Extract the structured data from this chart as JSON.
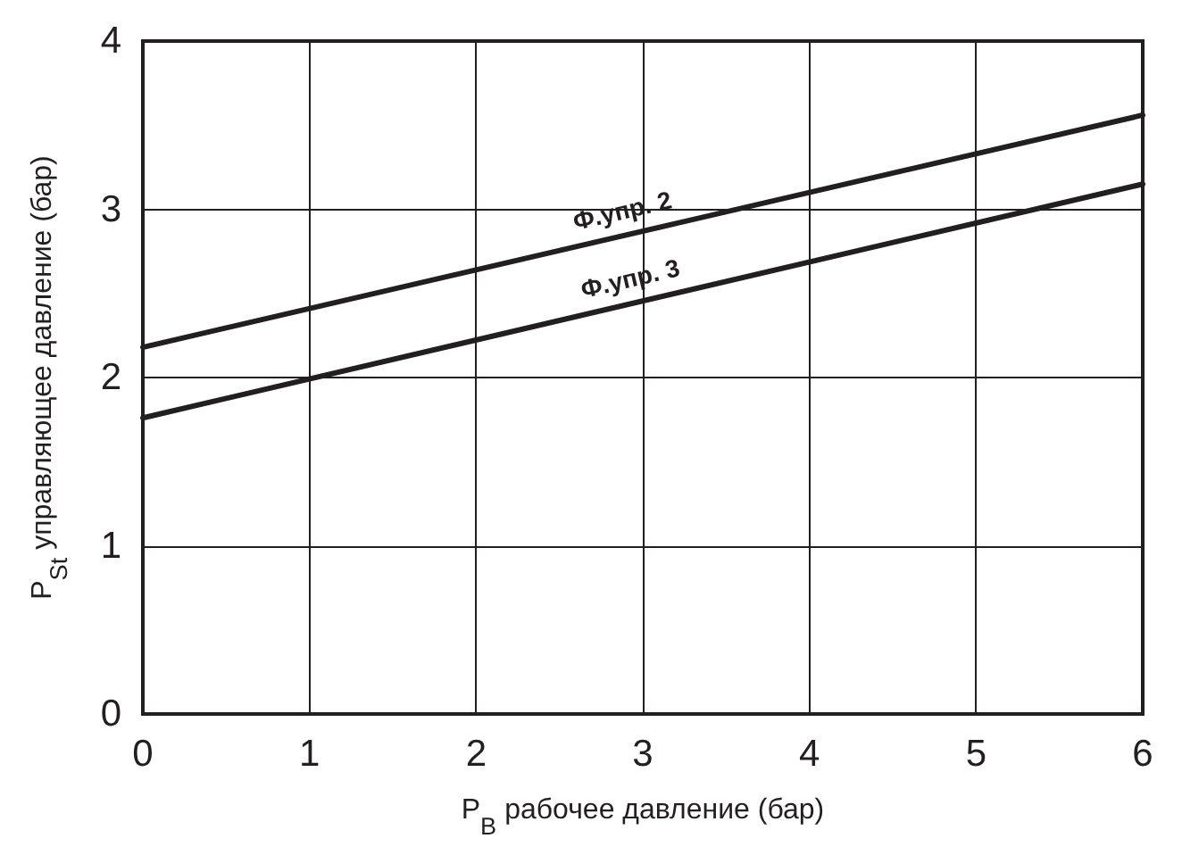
{
  "chart_data": {
    "type": "line",
    "xlabel": "P$_{B}$ рабочее давление (бар)",
    "ylabel": "P$_{St}$ управляющее давление (бар)",
    "x": [
      0,
      6
    ],
    "series": [
      {
        "name": "Ф.упр. 2",
        "color": "#231f20",
        "values": [
          2.18,
          3.56
        ]
      },
      {
        "name": "Ф.упр. 3",
        "color": "#231f20",
        "values": [
          1.76,
          3.15
        ]
      }
    ],
    "xlim": [
      0,
      6
    ],
    "xticks": [
      0,
      1,
      2,
      3,
      4,
      5,
      6
    ],
    "ylim": [
      0,
      4
    ],
    "yticks": [
      0,
      1,
      2,
      3,
      4
    ],
    "grid": true,
    "marker": "none",
    "line_style": "solid"
  }
}
